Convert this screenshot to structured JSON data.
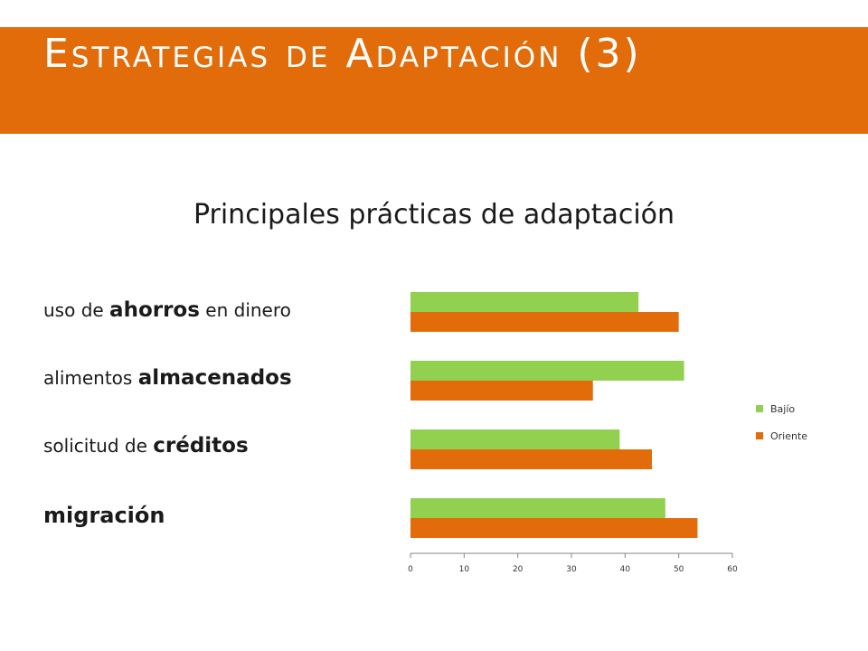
{
  "slide": {
    "title": "Estrategias de Adaptación (3)",
    "subtitle": "Principales prácticas de adaptación"
  },
  "labels": [
    {
      "pre": "uso de ",
      "bold": "ahorros",
      "post": " en dinero"
    },
    {
      "pre": "alimentos ",
      "bold": "almacenados",
      "post": ""
    },
    {
      "pre": "solicitud de ",
      "bold": "créditos",
      "post": ""
    },
    {
      "pre": "",
      "bold": "migración",
      "post": ""
    }
  ],
  "colors": {
    "accent": "#e36c0a",
    "bajio": "#92d050",
    "oriente": "#e36c0a"
  },
  "chart_data": {
    "type": "bar",
    "orientation": "horizontal",
    "categories": [
      "uso de ahorros en dinero",
      "alimentos almacenados",
      "solicitud de créditos",
      "migración"
    ],
    "series": [
      {
        "name": "Bajío",
        "values": [
          42.5,
          51,
          39,
          47.5
        ]
      },
      {
        "name": "Oriente",
        "values": [
          50,
          34,
          45,
          53.5
        ]
      }
    ],
    "xlim": [
      0,
      60
    ],
    "xticks": [
      "0",
      "10",
      "20",
      "30",
      "40",
      "50",
      "60"
    ],
    "legend": "right",
    "grid": false
  }
}
